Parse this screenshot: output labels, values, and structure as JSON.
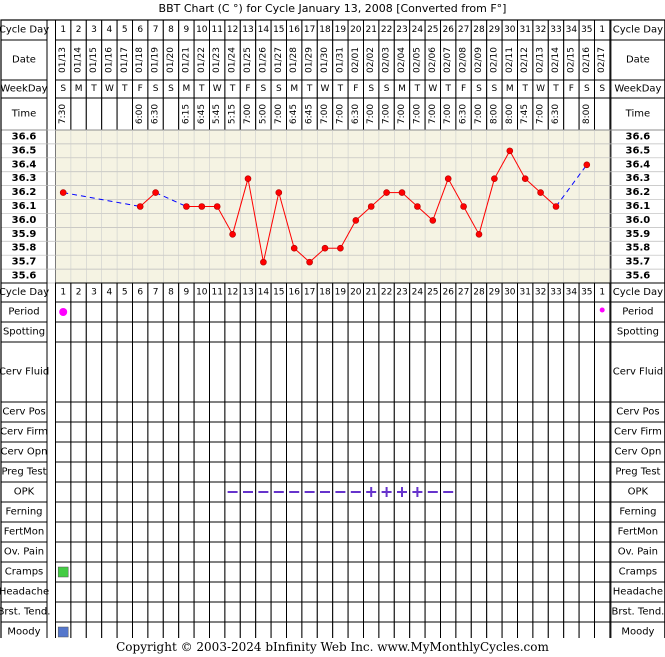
{
  "title": "BBT Chart (C °) for Cycle January 13, 2008  [Converted from F°]",
  "footer": "Copyright © 2003-2024 bInfinity Web Inc.     www.MyMonthlyCycles.com",
  "row_labels": {
    "cycle_day": "Cycle Day",
    "date": "Date",
    "weekday": "WeekDay",
    "time": "Time"
  },
  "cycle_days": [
    "1",
    "2",
    "3",
    "4",
    "5",
    "6",
    "7",
    "8",
    "9",
    "10",
    "11",
    "12",
    "13",
    "14",
    "15",
    "16",
    "17",
    "18",
    "19",
    "20",
    "21",
    "22",
    "23",
    "24",
    "25",
    "26",
    "27",
    "28",
    "29",
    "30",
    "31",
    "32",
    "33",
    "34",
    "35",
    "1"
  ],
  "dates": [
    "01/13",
    "01/14",
    "01/15",
    "01/16",
    "01/17",
    "01/18",
    "01/19",
    "01/20",
    "01/21",
    "01/22",
    "01/23",
    "01/24",
    "01/25",
    "01/26",
    "01/27",
    "01/28",
    "01/29",
    "01/30",
    "01/31",
    "02/01",
    "02/02",
    "02/03",
    "02/04",
    "02/05",
    "02/06",
    "02/07",
    "02/08",
    "02/09",
    "02/10",
    "02/11",
    "02/12",
    "02/13",
    "02/14",
    "02/15",
    "02/16",
    "02/17"
  ],
  "weekdays": [
    "S",
    "M",
    "T",
    "W",
    "T",
    "F",
    "S",
    "S",
    "M",
    "T",
    "W",
    "T",
    "F",
    "S",
    "S",
    "M",
    "T",
    "W",
    "T",
    "F",
    "S",
    "S",
    "M",
    "T",
    "W",
    "T",
    "F",
    "S",
    "S",
    "M",
    "T",
    "W",
    "T",
    "F",
    "S",
    "S"
  ],
  "times": [
    "7:30",
    "",
    "",
    "",
    "",
    "6:00",
    "6:30",
    "",
    "6:15",
    "6:45",
    "5:45",
    "5:15",
    "7:00",
    "5:00",
    "7:00",
    "6:45",
    "6:45",
    "7:00",
    "7:00",
    "6:30",
    "7:00",
    "7:00",
    "7:00",
    "7:00",
    "7:00",
    "7:00",
    "6:30",
    "7:00",
    "8:00",
    "8:00",
    "7:45",
    "7:00",
    "6:30",
    "",
    "8:00",
    ""
  ],
  "chart_data": {
    "type": "line",
    "x": [
      "1",
      "2",
      "3",
      "4",
      "5",
      "6",
      "7",
      "8",
      "9",
      "10",
      "11",
      "12",
      "13",
      "14",
      "15",
      "16",
      "17",
      "18",
      "19",
      "20",
      "21",
      "22",
      "23",
      "24",
      "25",
      "26",
      "27",
      "28",
      "29",
      "30",
      "31",
      "32",
      "33",
      "34",
      "35",
      "1"
    ],
    "temps": [
      36.2,
      null,
      null,
      null,
      null,
      36.1,
      36.2,
      null,
      36.1,
      36.1,
      36.1,
      35.9,
      36.3,
      35.7,
      36.2,
      35.8,
      35.7,
      35.8,
      35.8,
      36.0,
      36.1,
      36.2,
      36.2,
      36.1,
      36.0,
      36.3,
      36.1,
      35.9,
      36.3,
      36.5,
      36.3,
      36.2,
      36.1,
      null,
      36.4,
      null
    ],
    "ylim": [
      35.6,
      36.6
    ],
    "y_ticks": [
      "36.6",
      "36.5",
      "36.4",
      "36.3",
      "36.2",
      "36.1",
      "36.0",
      "35.9",
      "35.8",
      "35.7",
      "35.6"
    ],
    "grid": true,
    "line_color": "#ff0000",
    "gap_line_color": "#0000ff",
    "plot_bg": "#f5f3e3"
  },
  "symptoms": [
    {
      "label": "Period",
      "marks": [
        {
          "index": 0,
          "type": "dot",
          "color": "#ff00ff"
        },
        {
          "index": 35,
          "type": "dot-small",
          "color": "#ff00ff"
        }
      ]
    },
    {
      "label": "Spotting",
      "marks": []
    },
    {
      "label": "Cerv Fluid",
      "marks": []
    },
    {
      "label": "Cerv Pos",
      "marks": []
    },
    {
      "label": "Cerv Firm",
      "marks": []
    },
    {
      "label": "Cerv Opn",
      "marks": []
    },
    {
      "label": "Preg Test",
      "marks": []
    },
    {
      "label": "OPK",
      "marks": [
        {
          "index": 11,
          "type": "dash"
        },
        {
          "index": 12,
          "type": "dash"
        },
        {
          "index": 13,
          "type": "dash"
        },
        {
          "index": 14,
          "type": "dash"
        },
        {
          "index": 15,
          "type": "dash"
        },
        {
          "index": 16,
          "type": "dash"
        },
        {
          "index": 17,
          "type": "dash"
        },
        {
          "index": 18,
          "type": "dash"
        },
        {
          "index": 19,
          "type": "dash"
        },
        {
          "index": 20,
          "type": "plus"
        },
        {
          "index": 21,
          "type": "plus"
        },
        {
          "index": 22,
          "type": "plus"
        },
        {
          "index": 23,
          "type": "plus"
        },
        {
          "index": 24,
          "type": "dash"
        },
        {
          "index": 25,
          "type": "dash"
        }
      ]
    },
    {
      "label": "Ferning",
      "marks": []
    },
    {
      "label": "FertMon",
      "marks": []
    },
    {
      "label": "Ov. Pain",
      "marks": []
    },
    {
      "label": "Cramps",
      "marks": [
        {
          "index": 0,
          "type": "square",
          "color": "#44cc44"
        }
      ]
    },
    {
      "label": "Headache",
      "marks": []
    },
    {
      "label": "Brst. Tend.",
      "marks": []
    },
    {
      "label": "Moody",
      "marks": [
        {
          "index": 0,
          "type": "square",
          "color": "#5577cc"
        }
      ]
    }
  ],
  "colors": {
    "opk_mark": "#6633cc",
    "label_bg": "#e6e6e6"
  }
}
